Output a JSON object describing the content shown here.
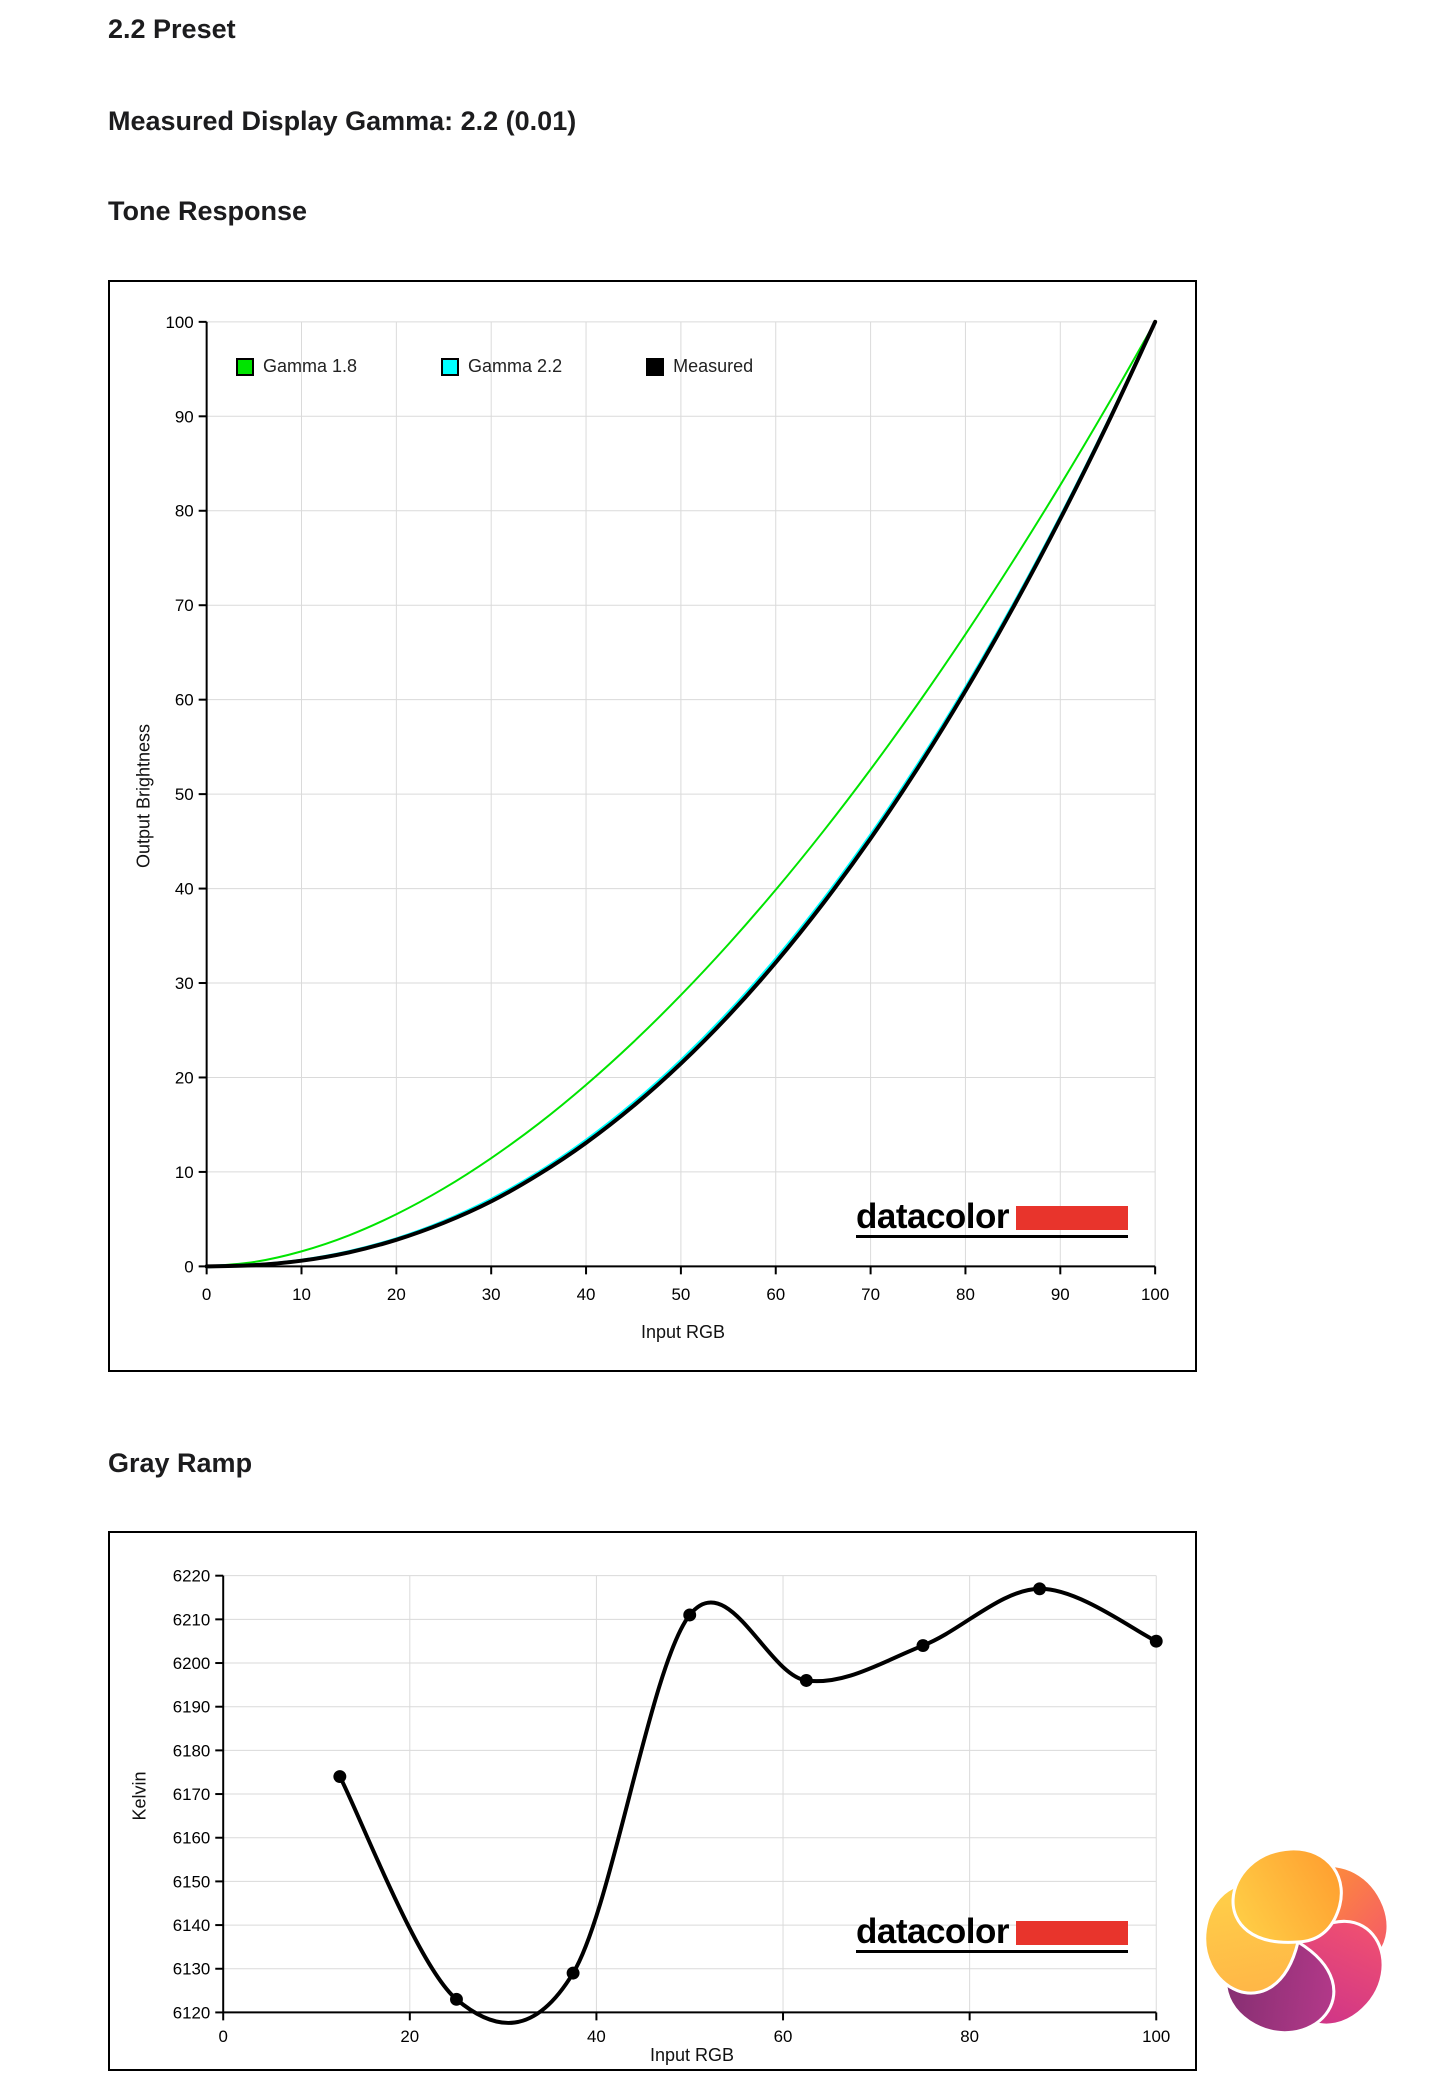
{
  "page": {
    "heading": "2.2 Preset",
    "subheading": "Measured Display Gamma: 2.2 (0.01)",
    "section1_title": "Tone Response",
    "section2_title": "Gray Ramp"
  },
  "branding": {
    "datacolor_label": "datacolor",
    "datacolor_red": "#e8342c",
    "kitguru_logo_name": "kitguru-swirl-logo"
  },
  "chart_data": [
    {
      "type": "line",
      "title": "Tone Response",
      "xlabel": "Input RGB",
      "ylabel": "Output Brightness",
      "xlim": [
        0,
        100
      ],
      "ylim": [
        0,
        100
      ],
      "xticks": [
        0,
        10,
        20,
        30,
        40,
        50,
        60,
        70,
        80,
        90,
        100
      ],
      "yticks": [
        0,
        10,
        20,
        30,
        40,
        50,
        60,
        70,
        80,
        90,
        100
      ],
      "grid": true,
      "legend_position": "top-left",
      "x": [
        0,
        5,
        10,
        15,
        20,
        25,
        30,
        35,
        40,
        45,
        50,
        55,
        60,
        65,
        70,
        75,
        80,
        85,
        90,
        95,
        100
      ],
      "series": [
        {
          "name": "Gamma 1.8",
          "color": "#00e400",
          "gamma": 1.8,
          "values": [
            0,
            0.46,
            1.59,
            3.28,
            5.52,
            8.25,
            11.46,
            15.11,
            19.22,
            23.76,
            28.72,
            34.09,
            39.87,
            46.05,
            52.62,
            59.58,
            66.92,
            74.64,
            82.72,
            91.18,
            100
          ]
        },
        {
          "name": "Gamma 2.2",
          "color": "#00ffff",
          "gamma": 2.2,
          "values": [
            0,
            0.14,
            0.63,
            1.54,
            2.9,
            4.74,
            7.07,
            9.93,
            13.32,
            17.26,
            21.77,
            26.84,
            32.51,
            38.76,
            45.63,
            53.11,
            61.21,
            69.94,
            79.31,
            89.33,
            100
          ]
        },
        {
          "name": "Measured",
          "color": "#000000",
          "values": [
            0,
            0.13,
            0.6,
            1.48,
            2.81,
            4.61,
            6.88,
            9.73,
            13.08,
            16.99,
            21.47,
            26.52,
            32.17,
            38.43,
            45.3,
            52.8,
            60.93,
            69.71,
            79.14,
            89.24,
            100
          ]
        }
      ]
    },
    {
      "type": "line",
      "title": "Gray Ramp",
      "xlabel": "Input RGB",
      "ylabel": "Kelvin",
      "xlim": [
        0,
        100
      ],
      "ylim": [
        6120,
        6220
      ],
      "xticks": [
        0,
        20,
        40,
        60,
        80,
        100
      ],
      "yticks": [
        6120,
        6130,
        6140,
        6150,
        6160,
        6170,
        6180,
        6190,
        6200,
        6210,
        6220
      ],
      "grid": true,
      "marker": "circle",
      "line_color": "#000000",
      "points_x": [
        12.5,
        25,
        37.5,
        50,
        62.5,
        75,
        87.5,
        100
      ],
      "points_y": [
        6174,
        6123,
        6129,
        6211,
        6196,
        6204,
        6217,
        6205
      ]
    }
  ]
}
